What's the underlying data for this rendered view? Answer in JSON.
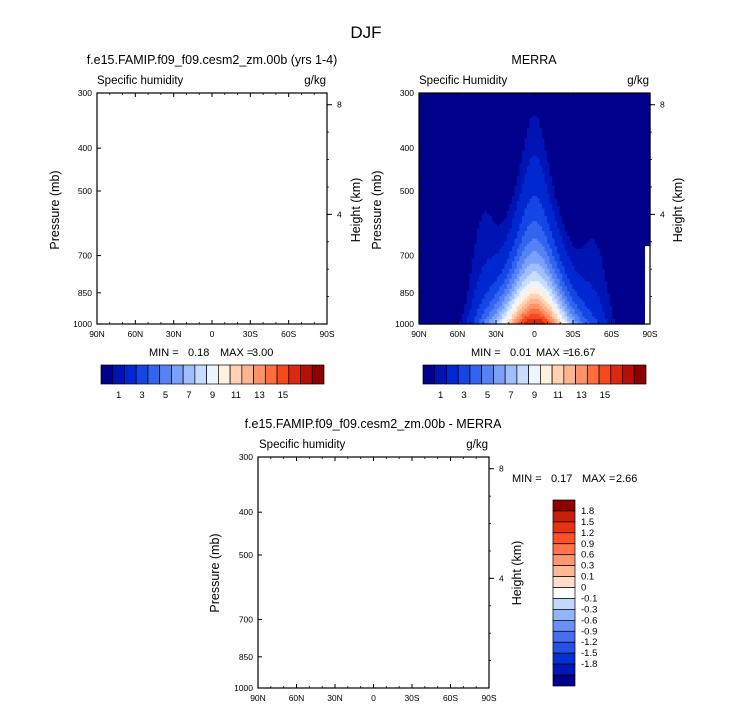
{
  "main_title": "DJF",
  "colors": {
    "seq": [
      "#00008c",
      "#0014b4",
      "#0028d2",
      "#1446e6",
      "#3264f0",
      "#5582f5",
      "#7aa0fa",
      "#a0befd",
      "#c8dcff",
      "#ebf4ff",
      "#fff0e0",
      "#ffd2b4",
      "#ffb490",
      "#ff9268",
      "#ff6e3c",
      "#f54a1e",
      "#dc2812",
      "#b41008",
      "#8c0000"
    ],
    "diff": [
      "#00008c",
      "#0018b4",
      "#0032d2",
      "#2550e6",
      "#466eee",
      "#6a90f5",
      "#94b4fa",
      "#c2d6ff",
      "#ffffff",
      "#ffdcc8",
      "#ffb896",
      "#ff9670",
      "#ff7448",
      "#ff5028",
      "#e63214",
      "#c81e0a",
      "#8c0000"
    ]
  },
  "chart_data": [
    {
      "type": "heatmap",
      "title": "f.e15.FAMIP.f09_f09.cesm2_zm.00b (yrs 1-4)",
      "left_label": "Specific humidity",
      "units": "g/kg",
      "xlabel": "",
      "ylabel": "Pressure (mb)",
      "y2label": "Height (km)",
      "x_ticks": [
        "90N",
        "60N",
        "30N",
        "0",
        "30S",
        "60S",
        "90S"
      ],
      "y_ticks": [
        "300",
        "400",
        "500",
        "700",
        "850",
        "1000"
      ],
      "y2_ticks": [
        "8",
        "4"
      ],
      "min_label": "MIN =",
      "min_value": "0.18",
      "max_label": "MAX =",
      "max_value": "3.00",
      "filled": false
    },
    {
      "type": "heatmap",
      "title": "MERRA",
      "left_label": "Specific Humidity",
      "units": "g/kg",
      "xlabel": "",
      "ylabel": "Pressure (mb)",
      "y2label": "Height (km)",
      "x_ticks": [
        "90N",
        "60N",
        "30N",
        "0",
        "30S",
        "60S",
        "90S"
      ],
      "y_ticks": [
        "300",
        "400",
        "500",
        "700",
        "850",
        "1000"
      ],
      "y2_ticks": [
        "8",
        "4"
      ],
      "min_label": "MIN =",
      "min_value": "0.01",
      "max_label": "MAX =",
      "max_value": "16.67",
      "filled": true,
      "levels": [
        0.5,
        1,
        2,
        3,
        4,
        5,
        6,
        7,
        8,
        9,
        10,
        11,
        12,
        13,
        14,
        15
      ],
      "peak_latitude": 0,
      "peak_value": 16.67
    },
    {
      "type": "heatmap",
      "title": "f.e15.FAMIP.f09_f09.cesm2_zm.00b - MERRA",
      "left_label": "Specific humidity",
      "units": "g/kg",
      "xlabel": "",
      "ylabel": "Pressure (mb)",
      "y2label": "Height (km)",
      "x_ticks": [
        "90N",
        "60N",
        "30N",
        "0",
        "30S",
        "60S",
        "90S"
      ],
      "y_ticks": [
        "300",
        "400",
        "500",
        "700",
        "850",
        "1000"
      ],
      "y2_ticks": [
        "8",
        "4"
      ],
      "min_label": "MIN =",
      "min_value": "0.17",
      "max_label": "MAX =",
      "max_value": "2.66",
      "filled": false
    }
  ],
  "colorbar_top": {
    "labels": [
      "1",
      "3",
      "5",
      "7",
      "9",
      "11",
      "13",
      "15"
    ]
  },
  "colorbar_diff": {
    "labels": [
      "1.8",
      "1.5",
      "1.2",
      "0.9",
      "0.6",
      "0.3",
      "0.1",
      "0",
      "-0.1",
      "-0.3",
      "-0.6",
      "-0.9",
      "-1.2",
      "-1.5",
      "-1.8"
    ]
  }
}
